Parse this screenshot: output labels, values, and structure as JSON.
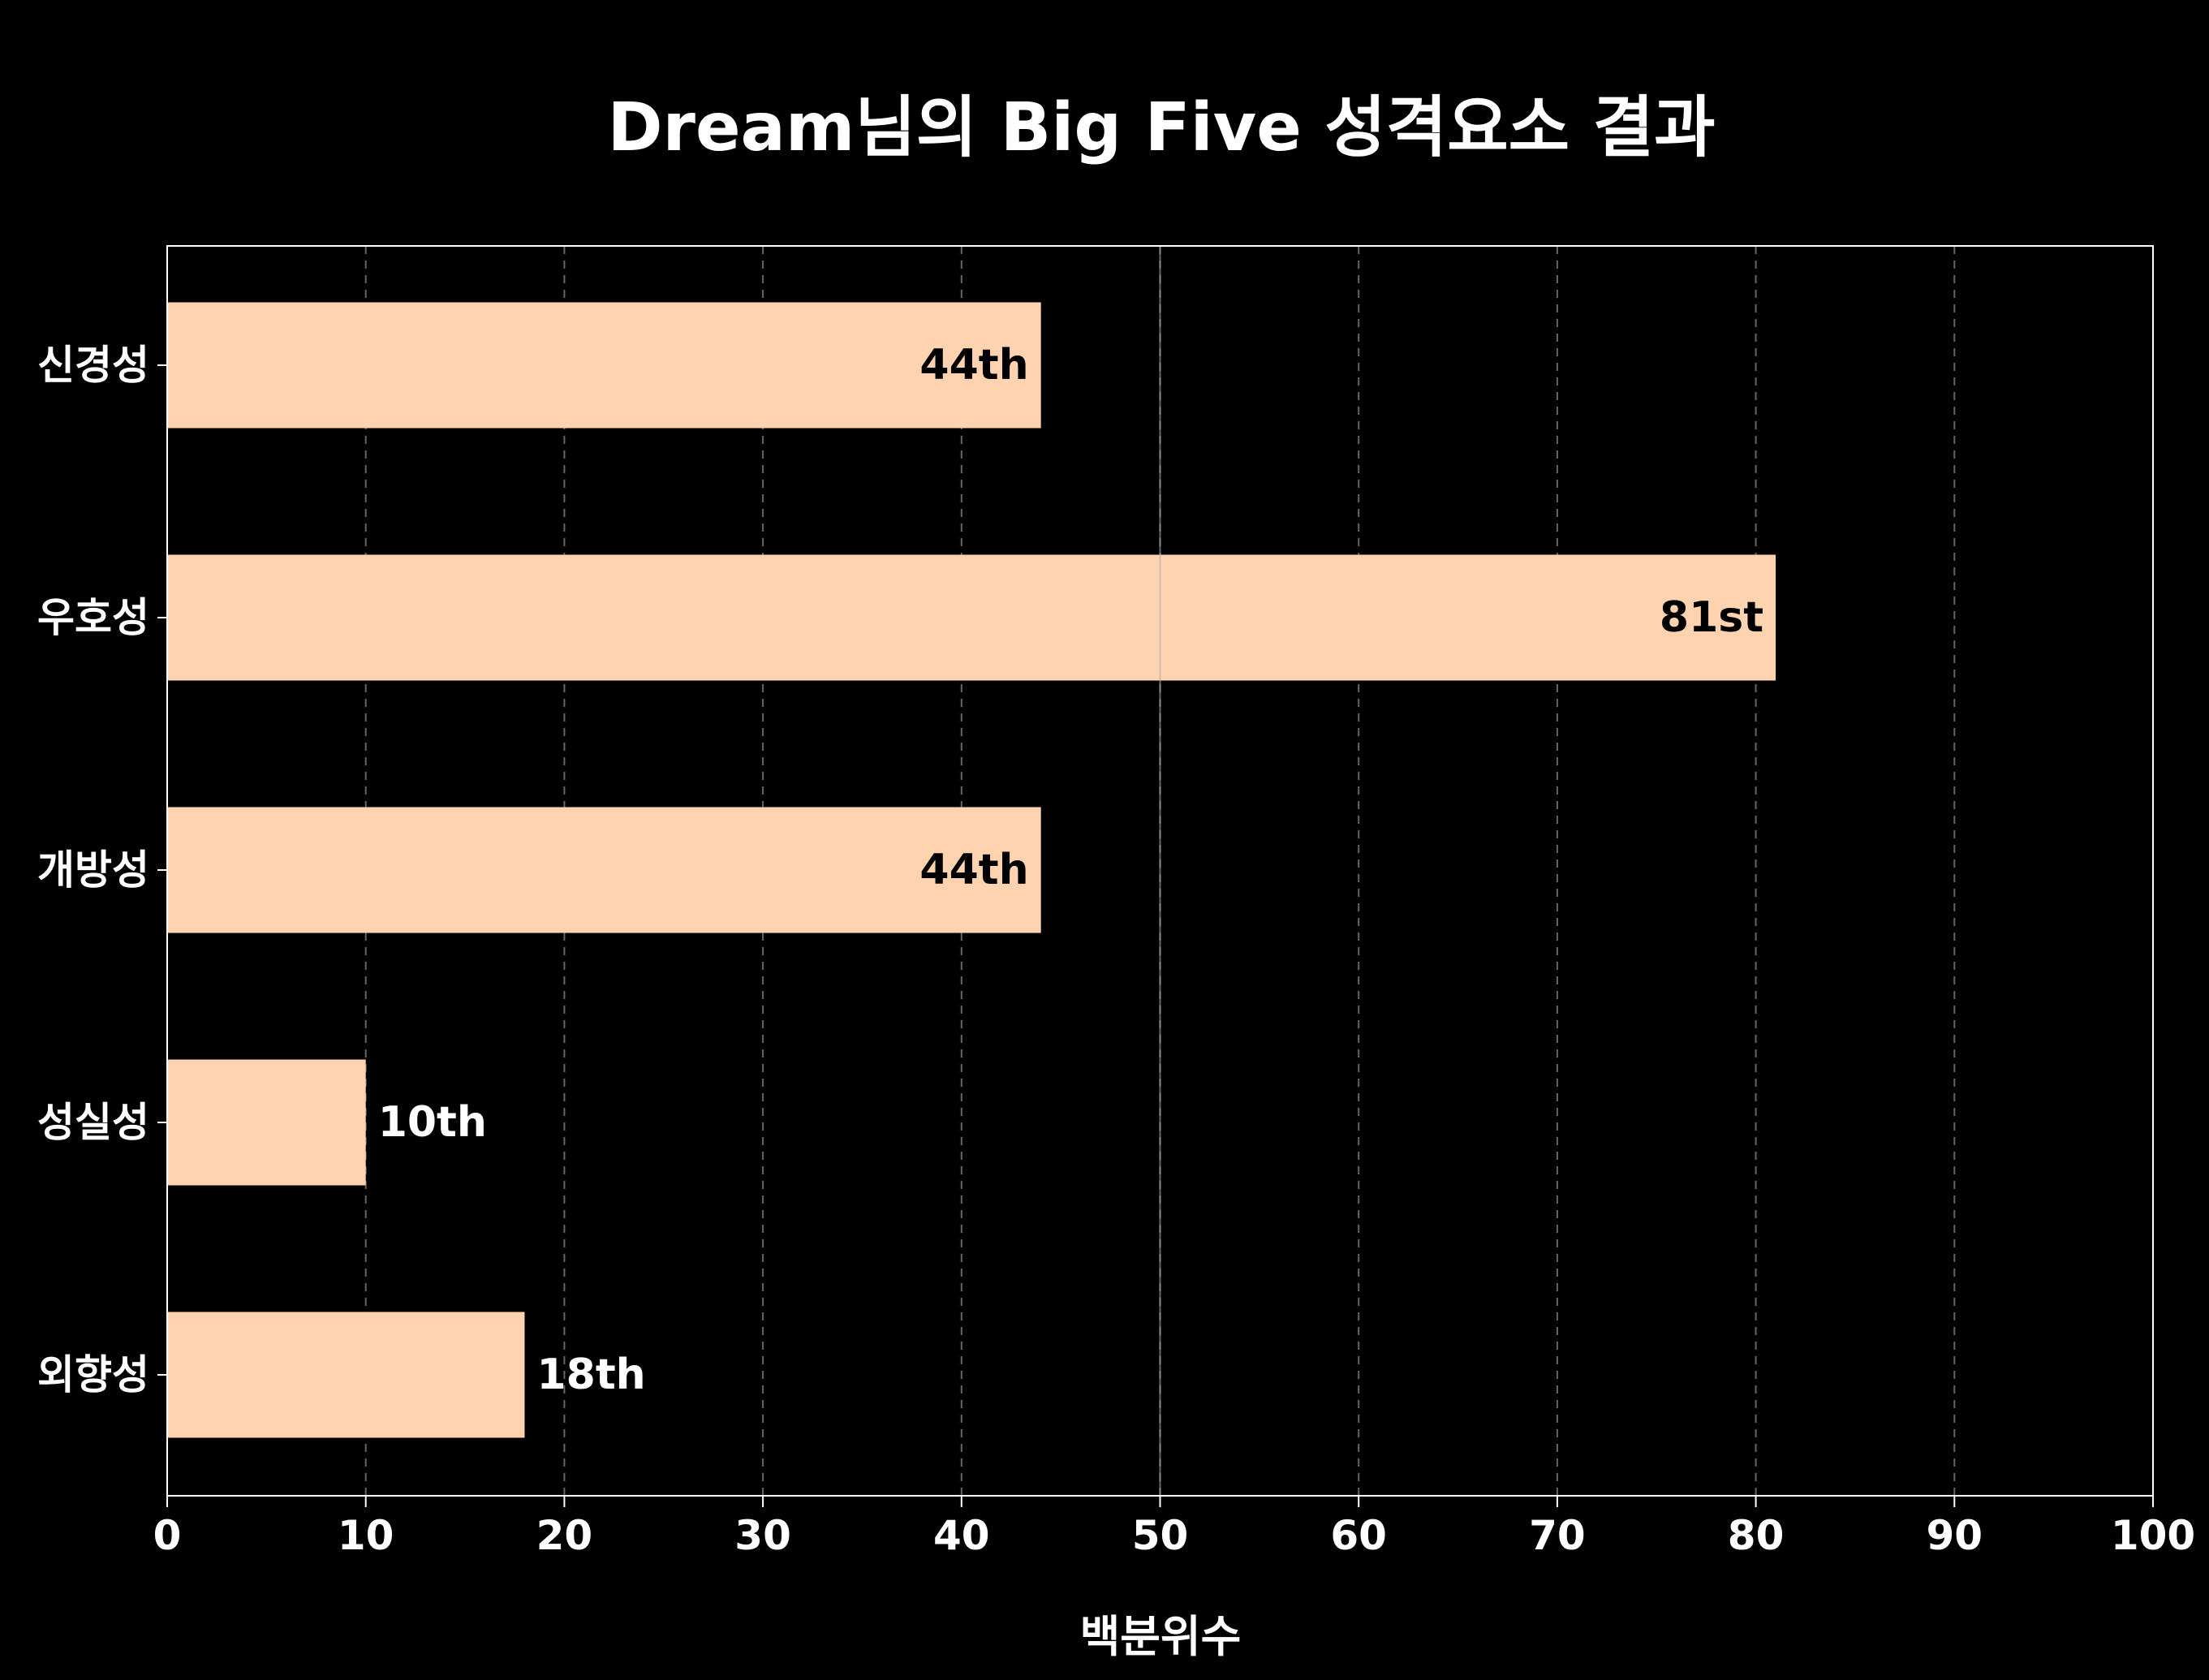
{
  "chart_data": {
    "type": "bar",
    "orientation": "horizontal",
    "title": "Dream님의 Big Five 성격요소 결과",
    "xlabel": "백분위수",
    "ylabel": "",
    "xlim": [
      0,
      100
    ],
    "xticks": [
      0,
      10,
      20,
      30,
      40,
      50,
      60,
      70,
      80,
      90,
      100
    ],
    "categories": [
      "신경성",
      "우호성",
      "개방성",
      "성실성",
      "외향성"
    ],
    "values": [
      44,
      81,
      44,
      10,
      18
    ],
    "data_labels": [
      "44th",
      "81st",
      "44th",
      "10th",
      "18th"
    ],
    "reference_line": 50,
    "grid": "vertical dashed",
    "colors": {
      "background": "#000000",
      "bar": "#FFD3B0",
      "axis": "#ffffff",
      "grid": "#666666",
      "text": "#ffffff",
      "label_inside": "#000000"
    }
  }
}
